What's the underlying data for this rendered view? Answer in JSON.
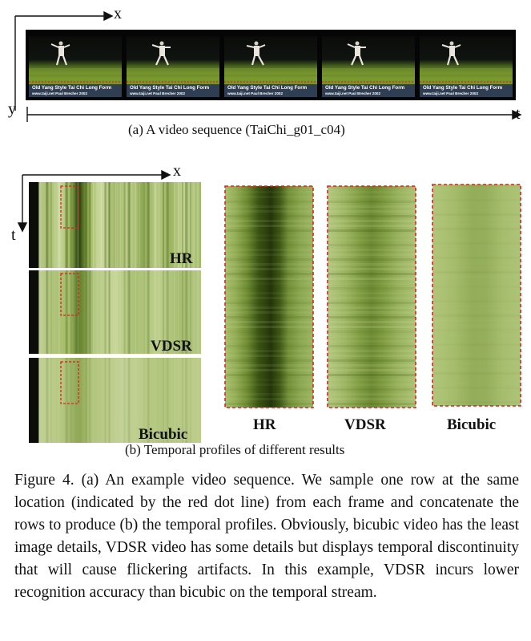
{
  "subfig_a": {
    "caption": "(a)  A video sequence (TaiChi_g01_c04)",
    "axis_x": "x",
    "axis_y": "y",
    "axis_t": "t",
    "frames": [
      {
        "title": "Old Yang Style Tai Chi Long Form",
        "url": "www.taiji.net  Paul Brecher 2002"
      },
      {
        "title": "Old Yang Style Tai Chi Long Form",
        "url": "www.taiji.net  Paul Brecher 2002"
      },
      {
        "title": "Old Yang Style Tai Chi Long Form",
        "url": "www.taiji.net  Paul Brecher 2002"
      },
      {
        "title": "Old Yang Style Tai Chi Long Form",
        "url": "www.taiji.net  Paul Brecher 2002"
      },
      {
        "title": "Old Yang Style Tai Chi Long Form",
        "url": "www.taiji.net  Paul Brecher 2002"
      }
    ]
  },
  "subfig_b": {
    "caption": "(b)  Temporal profiles of different results",
    "axis_x": "x",
    "axis_t": "t",
    "strip_labels": [
      "HR",
      "VDSR",
      "Bicubic"
    ],
    "zoom_labels": [
      "HR",
      "VDSR",
      "Bicubic"
    ]
  },
  "figure_caption": "Figure 4. (a) An example video sequence. We sample one row at the same location (indicated by the red dot line) from each frame and concatenate the rows to produce (b) the temporal profiles. Obviously, bicubic video has the least image details, VDSR video has some details but displays temporal discontinuity that will cause flickering artifacts. In this example, VDSR incurs lower recognition accuracy than bicubic on the temporal stream.",
  "colors": {
    "accent_red": "#e02020",
    "profile_green": "#9bb35a"
  }
}
